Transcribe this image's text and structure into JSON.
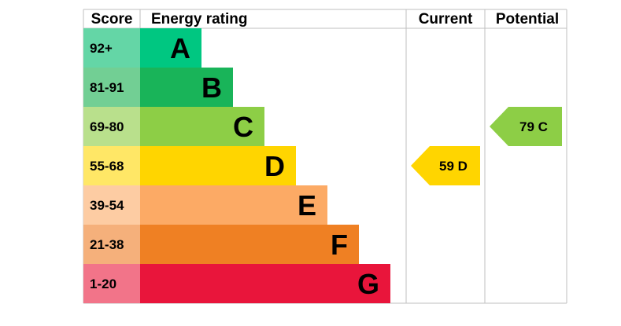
{
  "chart_data": {
    "type": "bar",
    "headers": {
      "score": "Score",
      "rating": "Energy rating",
      "current": "Current",
      "potential": "Potential"
    },
    "bands": [
      {
        "letter": "A",
        "range": "92+",
        "color": "#00c781",
        "score_color": "#64d6a6"
      },
      {
        "letter": "B",
        "range": "81-91",
        "color": "#19b459",
        "score_color": "#72cf94"
      },
      {
        "letter": "C",
        "range": "69-80",
        "color": "#8dce46",
        "score_color": "#b9e08c"
      },
      {
        "letter": "D",
        "range": "55-68",
        "color": "#ffd500",
        "score_color": "#ffe766"
      },
      {
        "letter": "E",
        "range": "39-54",
        "color": "#fcaa65",
        "score_color": "#fdcca3"
      },
      {
        "letter": "F",
        "range": "21-38",
        "color": "#ef8023",
        "score_color": "#f5b07b"
      },
      {
        "letter": "G",
        "range": "1-20",
        "color": "#e9153b",
        "score_color": "#f27489"
      }
    ],
    "current": {
      "value": 59,
      "band": "D",
      "label": "59  D",
      "color": "#ffd500"
    },
    "potential": {
      "value": 79,
      "band": "C",
      "label": "79  C",
      "color": "#8dce46"
    }
  }
}
